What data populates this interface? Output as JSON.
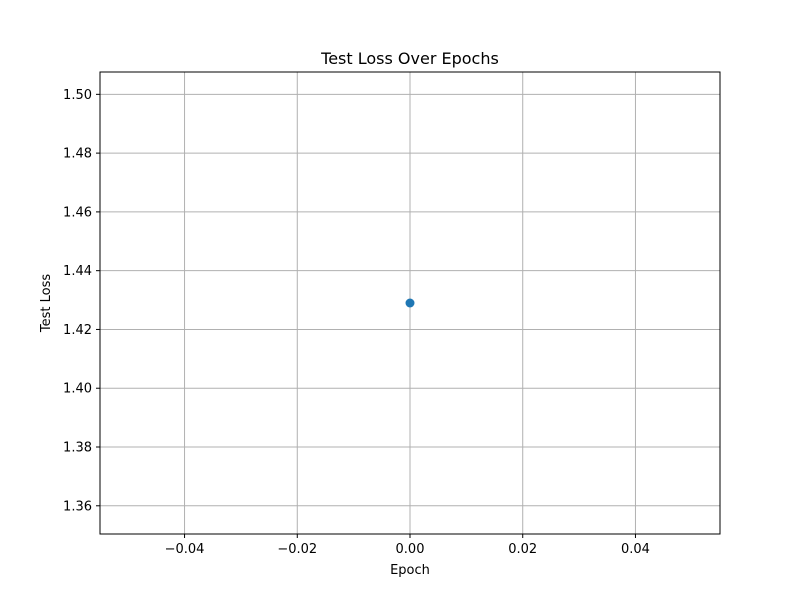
{
  "chart_data": {
    "type": "scatter",
    "title": "Test Loss Over Epochs",
    "xlabel": "Epoch",
    "ylabel": "Test Loss",
    "xlim": [
      -0.055,
      0.055
    ],
    "ylim": [
      1.3504,
      1.5076
    ],
    "x_ticks": [
      -0.04,
      -0.02,
      0.0,
      0.02,
      0.04
    ],
    "x_tick_labels": [
      "−0.04",
      "−0.02",
      "0.00",
      "0.02",
      "0.04"
    ],
    "y_ticks": [
      1.36,
      1.38,
      1.4,
      1.42,
      1.44,
      1.46,
      1.48,
      1.5
    ],
    "y_tick_labels": [
      "1.36",
      "1.38",
      "1.40",
      "1.42",
      "1.44",
      "1.46",
      "1.48",
      "1.50"
    ],
    "grid": true,
    "series": [
      {
        "x": [
          0
        ],
        "y": [
          1.429
        ],
        "color": "#1f77b4"
      }
    ]
  }
}
